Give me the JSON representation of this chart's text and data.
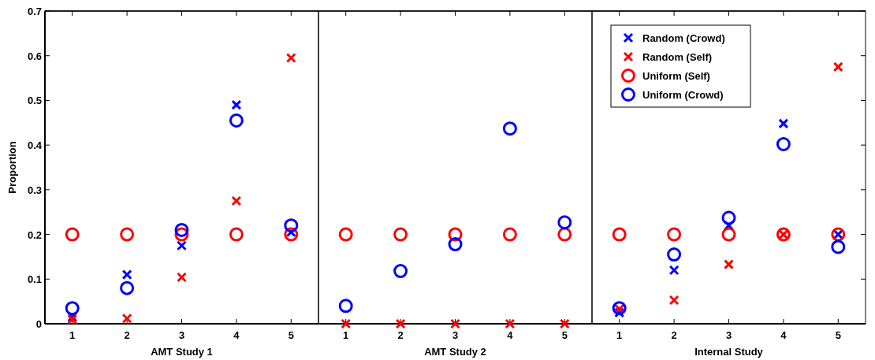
{
  "chart_data": [
    {
      "type": "scatter",
      "xlabel": "AMT Study 1",
      "ylabel": "Proportion",
      "x": [
        1,
        2,
        3,
        4,
        5
      ],
      "xlim": [
        0.5,
        5.5
      ],
      "xticks": [
        1,
        2,
        3,
        4,
        5
      ],
      "ylim": [
        0,
        0.7
      ],
      "yticks": [
        0,
        0.1,
        0.2,
        0.3,
        0.4,
        0.5,
        0.6,
        0.7
      ],
      "series": [
        {
          "color": "#0000ff",
          "marker": "cross",
          "values": [
            0.015,
            0.11,
            0.175,
            0.49,
            0.205
          ]
        },
        {
          "color": "#ff0000",
          "marker": "cross",
          "values": [
            0.01,
            0.012,
            0.104,
            0.275,
            0.595
          ]
        },
        {
          "color": "#ff0000",
          "marker": "circle",
          "values": [
            0.2,
            0.2,
            0.2,
            0.2,
            0.2
          ]
        },
        {
          "color": "#0000ff",
          "marker": "circle",
          "values": [
            0.035,
            0.08,
            0.21,
            0.455,
            0.22
          ]
        }
      ]
    },
    {
      "type": "scatter",
      "xlabel": "AMT Study 2",
      "x": [
        1,
        2,
        3,
        4,
        5
      ],
      "xlim": [
        0.5,
        5.5
      ],
      "xticks": [
        1,
        2,
        3,
        4,
        5
      ],
      "ylim": [
        0,
        0.7
      ],
      "yticks": [
        0,
        0.1,
        0.2,
        0.3,
        0.4,
        0.5,
        0.6,
        0.7
      ],
      "tick_labels": "x",
      "series": [
        {
          "color": "#ff0000",
          "marker": "cross",
          "values": [
            0,
            0,
            0,
            0,
            0
          ]
        },
        {
          "color": "#ff0000",
          "marker": "circle",
          "values": [
            0.2,
            0.2,
            0.2,
            0.2,
            0.2
          ]
        },
        {
          "color": "#0000ff",
          "marker": "circle",
          "values": [
            0.04,
            0.118,
            0.178,
            0.437,
            0.227
          ]
        }
      ]
    },
    {
      "type": "scatter",
      "xlabel": "Internal Study",
      "x": [
        1,
        2,
        3,
        4,
        5
      ],
      "xlim": [
        0.5,
        5.5
      ],
      "xticks": [
        1,
        2,
        3,
        4,
        5
      ],
      "ylim": [
        0,
        0.7
      ],
      "yticks": [
        0,
        0.1,
        0.2,
        0.3,
        0.4,
        0.5,
        0.6,
        0.7
      ],
      "tick_labels": "x",
      "legend": "top left",
      "series": [
        {
          "name": "Random (Crowd)",
          "color": "#0000ff",
          "marker": "cross",
          "values": [
            0.025,
            0.12,
            0.22,
            0.448,
            0.2
          ]
        },
        {
          "name": "Random (Self)",
          "color": "#ff0000",
          "marker": "cross",
          "values": [
            0.033,
            0.053,
            0.133,
            0.2,
            0.575
          ]
        },
        {
          "name": "Uniform (Self)",
          "color": "#ff0000",
          "marker": "circle",
          "values": [
            0.2,
            0.2,
            0.2,
            0.2,
            0.2
          ]
        },
        {
          "name": "Uniform (Crowd)",
          "color": "#0000ff",
          "marker": "circle",
          "values": [
            0.035,
            0.155,
            0.237,
            0.402,
            0.172
          ]
        }
      ]
    }
  ]
}
